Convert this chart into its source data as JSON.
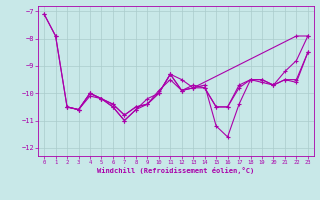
{
  "xlabel": "Windchill (Refroidissement éolien,°C)",
  "xlim": [
    -0.5,
    23.5
  ],
  "ylim": [
    -12.3,
    -6.8
  ],
  "yticks": [
    -12,
    -11,
    -10,
    -9,
    -8,
    -7
  ],
  "xticks": [
    0,
    1,
    2,
    3,
    4,
    5,
    6,
    7,
    8,
    9,
    10,
    11,
    12,
    13,
    14,
    15,
    16,
    17,
    18,
    19,
    20,
    21,
    22,
    23
  ],
  "background_color": "#c8e8e8",
  "line_color": "#aa00aa",
  "grid_color": "#aacccc",
  "series": [
    {
      "x": [
        0,
        1,
        2,
        3,
        4,
        5,
        6,
        7,
        8,
        9,
        10,
        11,
        12,
        13,
        22,
        23
      ],
      "y": [
        -7.1,
        -7.9,
        -10.5,
        -10.6,
        -10.1,
        -10.2,
        -10.5,
        -11.0,
        -10.6,
        -10.2,
        -10.0,
        -9.3,
        -9.5,
        -9.8,
        -7.9,
        -7.9
      ]
    },
    {
      "x": [
        0,
        1,
        2,
        3,
        4,
        5,
        6,
        7,
        8,
        9,
        10,
        11,
        12,
        13,
        14,
        15,
        16,
        17,
        18,
        19,
        20,
        21,
        22,
        23
      ],
      "y": [
        -7.1,
        -7.9,
        -10.5,
        -10.6,
        -10.0,
        -10.2,
        -10.5,
        -11.0,
        -10.6,
        -10.4,
        -10.0,
        -9.3,
        -9.9,
        -9.8,
        -9.7,
        -11.2,
        -11.6,
        -10.4,
        -9.5,
        -9.5,
        -9.7,
        -9.2,
        -8.8,
        -7.9
      ]
    },
    {
      "x": [
        2,
        3,
        4,
        5,
        6,
        7,
        8,
        9,
        10,
        11,
        12,
        13,
        14,
        15,
        16,
        17,
        18,
        19,
        20,
        21,
        22,
        23
      ],
      "y": [
        -10.5,
        -10.6,
        -10.0,
        -10.2,
        -10.4,
        -10.8,
        -10.5,
        -10.4,
        -10.0,
        -9.3,
        -9.9,
        -9.8,
        -9.8,
        -10.5,
        -10.5,
        -9.7,
        -9.5,
        -9.5,
        -9.7,
        -9.5,
        -9.5,
        -8.5
      ]
    },
    {
      "x": [
        2,
        3,
        4,
        5,
        6,
        7,
        8,
        9,
        10,
        11,
        12,
        13,
        14,
        15,
        16,
        17,
        18,
        19,
        20,
        21,
        22,
        23
      ],
      "y": [
        -10.5,
        -10.6,
        -10.0,
        -10.2,
        -10.4,
        -10.8,
        -10.5,
        -10.4,
        -9.9,
        -9.5,
        -9.9,
        -9.7,
        -9.8,
        -10.5,
        -10.5,
        -9.8,
        -9.5,
        -9.6,
        -9.7,
        -9.5,
        -9.6,
        -8.5
      ]
    }
  ]
}
